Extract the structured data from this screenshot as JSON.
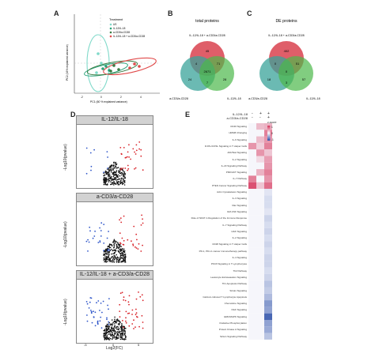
{
  "panels": {
    "A": "A",
    "B": "B",
    "C": "C",
    "D": "D",
    "E": "E"
  },
  "pca": {
    "legend_title": "Treatment",
    "legend_items": [
      "US",
      "IL-12/IL-18",
      "a-CD3/a-CD28",
      "IL-12/IL-18 + a-CD3/a-CD28"
    ],
    "ylabel": "PC2 (16% explained variance)",
    "xlabel": "PC1 (60 % explained variance)",
    "xticks": [
      "-2",
      "0",
      "2",
      "4"
    ],
    "colors": [
      "#7fd9c9",
      "#2aa37a",
      "#3a7d44",
      "#e04a4a"
    ]
  },
  "venn_total": {
    "title": "total proteins",
    "top_label": "IL-12/IL-18 + a-CD3/a-CD28",
    "left_label": "a-CD3/a-CD28",
    "right_label": "IL-12/IL-18",
    "numbers": [
      "45",
      "4",
      "71",
      "2671",
      "24",
      "28",
      "7"
    ]
  },
  "venn_de": {
    "title": "DE proteins",
    "top_label": "IL-12/IL-18 + a-CD3/a-CD28",
    "left_label": "a-CD3/a-CD28",
    "right_label": "IL-12/IL-18",
    "numbers": [
      "402",
      "0",
      "51",
      "0",
      "18",
      "57",
      "3"
    ]
  },
  "volcano": {
    "titles": [
      "IL-12/IL-18",
      "a-CD3/a-CD28",
      "IL-12/IL-18 + a-CD3/a-CD28"
    ],
    "ylabel": "-Log10(pvalue)",
    "xlabel": "Log2(FC)",
    "xticks": [
      "-5",
      "0",
      "5"
    ]
  },
  "heatmap": {
    "row_il12": "IL-12/IL-18",
    "row_cd3": "a-CD3/a-CD28",
    "signs_il12": [
      "-",
      "+",
      "+"
    ],
    "signs_cd3": [
      "-",
      "-",
      "+"
    ],
    "legend_title": "z-score",
    "legend_ticks": [
      "1",
      "0",
      "-1"
    ],
    "pathways": [
      "CD40 Signaling",
      "HMGB Changing",
      "IL-6 Signaling",
      "ICOS-ICOSL Signaling in T Helper Cells",
      "JAK/Stat Signaling",
      "IL-2 Signaling",
      "IL-23 Signaling Pathway",
      "PI3K/AKT Signaling",
      "IL-7 Pathway",
      "PTEN Cancer Signaling Pathway",
      "Actin Cytoskeleton Signaling",
      "IL-3 Signaling",
      "Rac Signaling",
      "GM-CSF Signaling",
      "Role of NFAT in Regulation of the Immune Response",
      "IL-7 Signaling Pathway",
      "HGF Signaling",
      "IL-2 Signaling",
      "CD28 Signaling in T Helper Cells",
      "PD-1, PD-L1 cancer immunotherapy pathway",
      "IL-4 Signaling",
      "PKCθ Signaling in T Lymphocytes",
      "Th2 Pathway",
      "Leukocyte Extravasation Signaling",
      "Th1 Apoptosis Pathway",
      "Sirtuin Signaling",
      "Calcium-induced T Lymphocyte Apoptosis",
      "Chemokine Signaling",
      "NGF Signaling",
      "ERK/MAPK Signaling",
      "Oxidative Phosphorylation",
      "Protein Kinase A Signaling",
      "Sirtuin Signaling Pathway"
    ],
    "values": [
      [
        0,
        0.3,
        0.35
      ],
      [
        0,
        0,
        0.6
      ],
      [
        0,
        0.3,
        0.5
      ],
      [
        0.5,
        0.2,
        0.6
      ],
      [
        0,
        0.5,
        0.25
      ],
      [
        0,
        0.15,
        0.45
      ],
      [
        0,
        0,
        0.5
      ],
      [
        0,
        0.35,
        0.6
      ],
      [
        0.6,
        0,
        0.5
      ],
      [
        0.85,
        0.25,
        0.7
      ],
      [
        0,
        0,
        -0.1
      ],
      [
        0,
        0,
        -0.15
      ],
      [
        0,
        0,
        -0.15
      ],
      [
        0,
        0,
        -0.1
      ],
      [
        0,
        0,
        -0.2
      ],
      [
        0,
        0,
        -0.15
      ],
      [
        0,
        0,
        -0.2
      ],
      [
        0,
        0,
        -0.15
      ],
      [
        0,
        0,
        -0.2
      ],
      [
        0,
        0,
        -0.15
      ],
      [
        0,
        0,
        -0.2
      ],
      [
        0,
        0,
        -0.2
      ],
      [
        0,
        0,
        -0.15
      ],
      [
        0,
        0,
        -0.2
      ],
      [
        0,
        0,
        -0.3
      ],
      [
        0,
        0,
        -0.25
      ],
      [
        0,
        0,
        -0.35
      ],
      [
        0,
        0,
        -0.55
      ],
      [
        0,
        0,
        -0.5
      ],
      [
        0,
        0,
        -0.85
      ],
      [
        0,
        0,
        -0.5
      ],
      [
        0,
        0,
        -0.45
      ],
      [
        0,
        0,
        -0.3
      ]
    ]
  }
}
